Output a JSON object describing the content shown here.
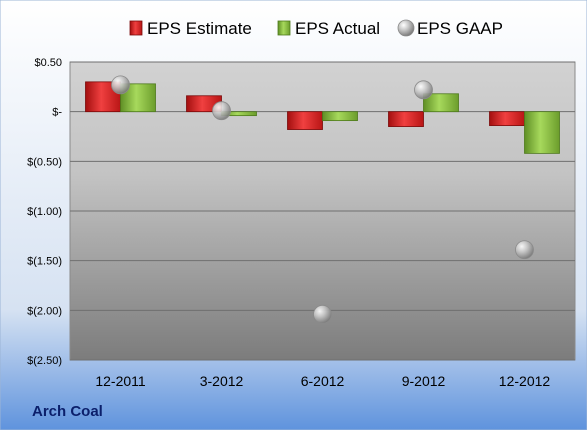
{
  "chart_data": {
    "type": "bar",
    "categories": [
      "12-2011",
      "3-2012",
      "6-2012",
      "9-2012",
      "12-2012"
    ],
    "series": [
      {
        "name": "EPS Estimate",
        "kind": "bar",
        "color": "#e02020",
        "values": [
          0.3,
          0.16,
          -0.18,
          -0.15,
          -0.14
        ]
      },
      {
        "name": "EPS Actual",
        "kind": "bar",
        "color": "#8cc63f",
        "values": [
          0.28,
          -0.04,
          -0.09,
          0.18,
          -0.42
        ]
      },
      {
        "name": "EPS GAAP",
        "kind": "marker",
        "color": "#b4b4b4",
        "values": [
          0.27,
          0.01,
          -2.04,
          0.22,
          -1.39
        ]
      }
    ],
    "y_ticks": [
      0.5,
      0,
      -0.5,
      -1.0,
      -1.5,
      -2.0,
      -2.5
    ],
    "y_tick_labels": [
      "$0.50",
      "$-",
      "$(0.50)",
      "$(1.00)",
      "$(1.50)",
      "$(2.00)",
      "$(2.50)"
    ],
    "ylim": [
      -2.5,
      0.5
    ],
    "grid": true,
    "legend_position": "top",
    "footer_label": "Arch Coal"
  }
}
